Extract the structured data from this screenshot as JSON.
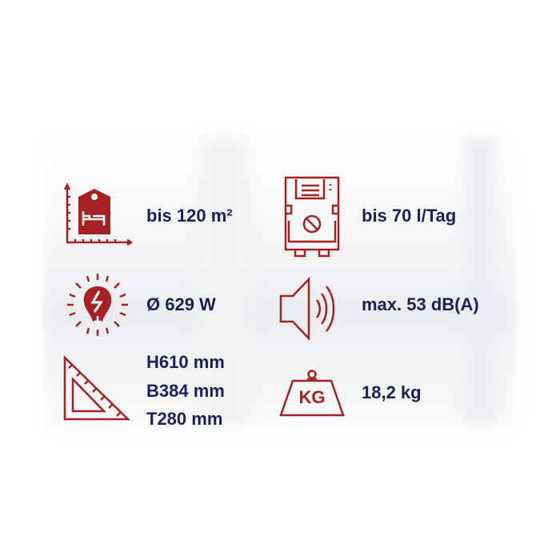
{
  "colors": {
    "icon": "#a52124",
    "text": "#1c1f5c"
  },
  "specs": {
    "area": {
      "icon": "room-area-icon",
      "value": "bis 120 m²"
    },
    "capacity": {
      "icon": "dehumidifier-icon",
      "value": "bis 70 l/Tag"
    },
    "power": {
      "icon": "power-bulb-icon",
      "value": "Ø 629 W"
    },
    "noise": {
      "icon": "speaker-icon",
      "value": "max. 53 dB(A)"
    },
    "dimensions": {
      "icon": "set-square-icon",
      "height": "H610 mm",
      "width": "B384 mm",
      "depth": "T280 mm"
    },
    "weight": {
      "icon": "weight-icon",
      "value": "18,2 kg",
      "icon_label": "KG"
    }
  }
}
